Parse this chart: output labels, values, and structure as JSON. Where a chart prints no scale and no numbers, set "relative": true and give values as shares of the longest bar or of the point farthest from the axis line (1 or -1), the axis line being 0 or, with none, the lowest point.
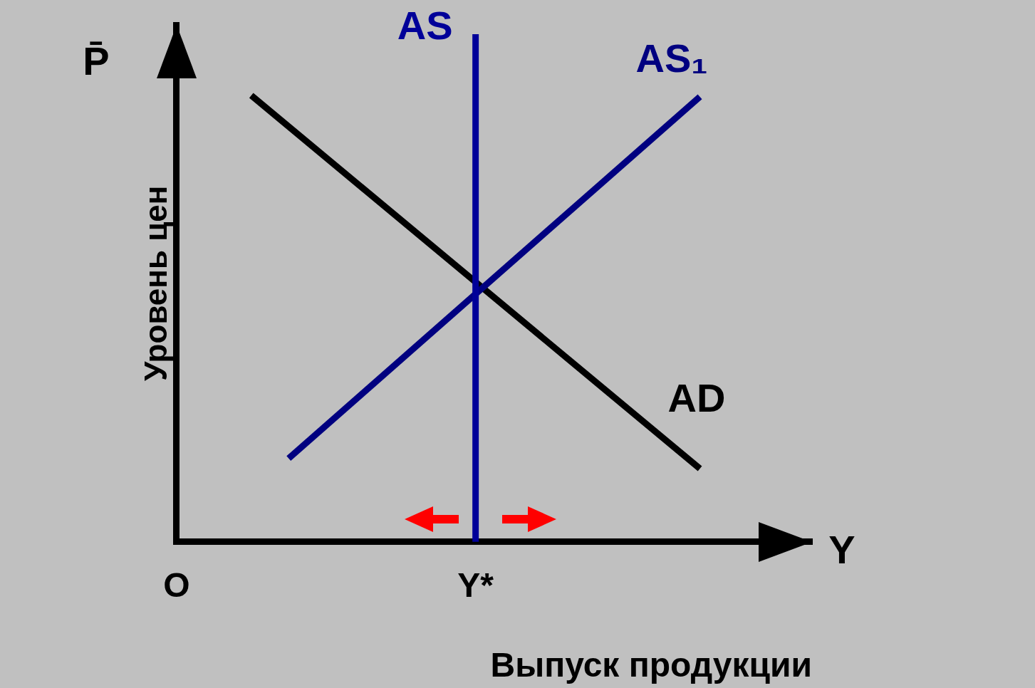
{
  "chart_data": {
    "type": "line",
    "relative": true,
    "xlabel": "Выпуск продукции",
    "ylabel": "Уровень цен",
    "annotations": [
      "P̄",
      "Y"
    ],
    "categories": [
      "O",
      null,
      null,
      null,
      null,
      null,
      null,
      null,
      "Y*",
      null,
      null,
      null,
      null,
      null,
      null,
      null,
      null,
      null
    ],
    "grid": false,
    "legend": false,
    "marker": "none",
    "line_style": "solid",
    "ref_lines": [
      {
        "axis": "x",
        "value": "Y*",
        "label": "AS",
        "color": "#000099"
      }
    ],
    "series": [
      {
        "name": "AS₁",
        "color": "#000080",
        "values": [
          null,
          null,
          null,
          0.187,
          null,
          null,
          null,
          null,
          null,
          null,
          null,
          null,
          null,
          null,
          0.997,
          null,
          null,
          null
        ]
      },
      {
        "name": "AD",
        "color": "#000000",
        "values": [
          null,
          null,
          1,
          null,
          null,
          null,
          null,
          null,
          null,
          null,
          null,
          null,
          null,
          null,
          0.164,
          null,
          null,
          null
        ]
      }
    ]
  }
}
